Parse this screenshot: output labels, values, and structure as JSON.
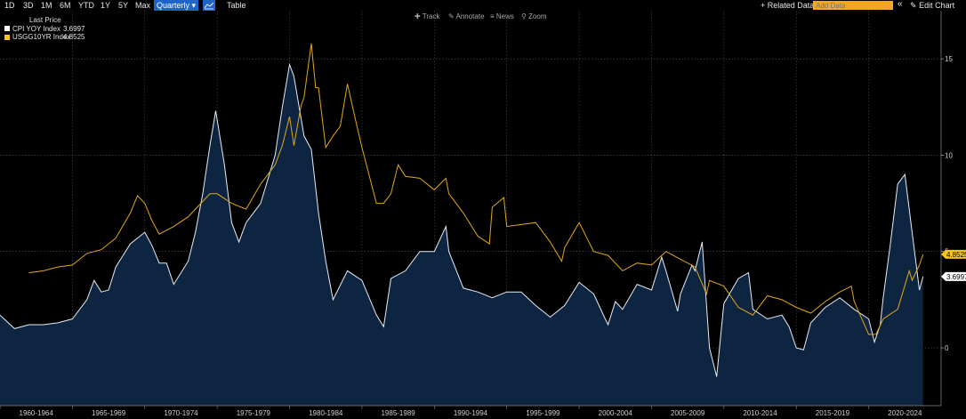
{
  "toolbar": {
    "periods": [
      "1D",
      "3D",
      "1M",
      "6M",
      "YTD",
      "1Y",
      "5Y",
      "Max"
    ],
    "frequency": "Quarterly ▾",
    "view_icon": "line-chart-icon",
    "table_label": "Table",
    "track_label": "Track",
    "annotate_label": "Annotate",
    "news_label": "News",
    "zoom_label": "Zoom",
    "related_data_label": "+ Related Data",
    "add_data_placeholder": "Add Data",
    "collapse_icon": "double-chevron-left-icon",
    "edit_chart_label": "Edit Chart"
  },
  "legend": {
    "title": "Last Price",
    "items": [
      {
        "name": "CPI YOY Index",
        "value": "3.6997",
        "color": "#ffffff"
      },
      {
        "name": "USGG10YR Index",
        "value": "4.8525",
        "color": "#f5c518"
      }
    ]
  },
  "colors": {
    "cpi_line": "#e8ecf4",
    "cpi_fill": "#0e2542",
    "ust_line": "#e1a817",
    "label_ust_bg": "#f5c518",
    "label_cpi_bg": "#ffffff"
  },
  "chart_data": {
    "type": "area",
    "x_range": [
      1960,
      2025
    ],
    "ylim": [
      -3,
      17.5
    ],
    "y_ticks": [
      0,
      5,
      10,
      15
    ],
    "grid": true,
    "x_tick_labels": [
      "1960-1964",
      "1965-1969",
      "1970-1974",
      "1975-1979",
      "1980-1984",
      "1985-1989",
      "1990-1994",
      "1995-1999",
      "2000-2004",
      "2005-2009",
      "2010-2014",
      "2015-2019",
      "2020-2024"
    ],
    "series": [
      {
        "name": "CPI YOY Index",
        "last_value": 3.6997,
        "x": [
          1960.0,
          1961.0,
          1962.0,
          1963.0,
          1964.0,
          1965.0,
          1966.0,
          1966.5,
          1967.0,
          1967.5,
          1968.0,
          1969.0,
          1970.0,
          1970.5,
          1971.0,
          1971.5,
          1972.0,
          1973.0,
          1973.5,
          1974.0,
          1974.5,
          1974.9,
          1975.5,
          1976.0,
          1976.5,
          1977.0,
          1978.0,
          1979.0,
          1979.5,
          1980.0,
          1980.3,
          1981.0,
          1981.5,
          1982.0,
          1982.5,
          1983.0,
          1984.0,
          1985.0,
          1986.0,
          1986.5,
          1987.0,
          1988.0,
          1989.0,
          1990.0,
          1990.8,
          1991.0,
          1992.0,
          1993.0,
          1994.0,
          1995.0,
          1996.0,
          1997.0,
          1998.0,
          1999.0,
          2000.0,
          2001.0,
          2001.8,
          2002.0,
          2002.5,
          2003.0,
          2004.0,
          2005.0,
          2005.7,
          2006.0,
          2006.8,
          2007.0,
          2007.8,
          2008.0,
          2008.5,
          2009.0,
          2009.5,
          2010.0,
          2011.0,
          2011.7,
          2012.0,
          2013.0,
          2014.0,
          2014.5,
          2015.0,
          2015.5,
          2016.0,
          2017.0,
          2018.0,
          2019.0,
          2020.0,
          2020.4,
          2020.8,
          2021.0,
          2021.5,
          2022.0,
          2022.5,
          2023.0,
          2023.5,
          2023.75
        ],
        "y": [
          1.7,
          1.0,
          1.2,
          1.2,
          1.3,
          1.5,
          2.5,
          3.5,
          2.9,
          3.0,
          4.2,
          5.4,
          6.0,
          5.3,
          4.4,
          4.4,
          3.3,
          4.5,
          6.0,
          8.0,
          10.5,
          12.3,
          9.5,
          6.5,
          5.5,
          6.5,
          7.5,
          10.0,
          12.5,
          14.7,
          14.1,
          11.0,
          10.3,
          7.0,
          4.5,
          2.5,
          4.0,
          3.5,
          1.7,
          1.1,
          3.6,
          4.0,
          5.0,
          5.0,
          6.3,
          5.0,
          3.1,
          2.9,
          2.6,
          2.9,
          2.9,
          2.2,
          1.6,
          2.2,
          3.4,
          2.8,
          1.5,
          1.2,
          2.4,
          2.0,
          3.3,
          3.0,
          4.7,
          4.0,
          1.9,
          2.8,
          4.3,
          4.0,
          5.5,
          0.0,
          -1.5,
          2.3,
          3.6,
          3.9,
          2.0,
          1.5,
          1.7,
          1.1,
          0.0,
          -0.1,
          1.3,
          2.1,
          2.6,
          2.0,
          1.5,
          0.3,
          1.2,
          2.6,
          5.4,
          8.5,
          9.0,
          6.0,
          3.0,
          3.6997
        ]
      },
      {
        "name": "USGG10YR Index",
        "last_value": 4.8525,
        "x": [
          1962.0,
          1963.0,
          1964.0,
          1965.0,
          1966.0,
          1967.0,
          1968.0,
          1969.0,
          1969.5,
          1970.0,
          1970.5,
          1971.0,
          1972.0,
          1973.0,
          1974.0,
          1974.5,
          1975.0,
          1976.0,
          1977.0,
          1978.0,
          1979.0,
          1979.5,
          1980.0,
          1980.3,
          1980.8,
          1981.0,
          1981.5,
          1981.8,
          1982.0,
          1982.5,
          1983.0,
          1983.5,
          1984.0,
          1984.5,
          1985.0,
          1986.0,
          1986.5,
          1987.0,
          1987.5,
          1988.0,
          1989.0,
          1990.0,
          1990.8,
          1991.0,
          1992.0,
          1993.0,
          1993.8,
          1994.0,
          1994.8,
          1995.0,
          1996.0,
          1997.0,
          1998.0,
          1998.8,
          1999.0,
          2000.0,
          2001.0,
          2002.0,
          2003.0,
          2004.0,
          2005.0,
          2006.0,
          2007.0,
          2008.0,
          2008.8,
          2009.0,
          2010.0,
          2011.0,
          2012.0,
          2013.0,
          2014.0,
          2015.0,
          2016.0,
          2017.0,
          2018.0,
          2018.8,
          2019.0,
          2020.0,
          2020.5,
          2021.0,
          2022.0,
          2022.8,
          2023.0,
          2023.5,
          2023.75
        ],
        "y": [
          3.9,
          4.0,
          4.2,
          4.3,
          4.9,
          5.1,
          5.7,
          7.0,
          7.9,
          7.5,
          6.6,
          5.9,
          6.3,
          6.8,
          7.6,
          8.0,
          8.0,
          7.5,
          7.2,
          8.5,
          9.5,
          10.5,
          12.0,
          10.5,
          12.6,
          13.0,
          15.8,
          13.5,
          13.5,
          10.4,
          11.0,
          11.5,
          13.7,
          12.0,
          10.4,
          7.5,
          7.5,
          8.0,
          9.5,
          8.9,
          8.8,
          8.2,
          8.8,
          8.0,
          7.0,
          5.8,
          5.4,
          7.3,
          7.8,
          6.3,
          6.4,
          6.5,
          5.5,
          4.5,
          5.2,
          6.5,
          5.0,
          4.8,
          4.0,
          4.4,
          4.3,
          5.0,
          4.6,
          4.2,
          2.8,
          3.5,
          3.2,
          2.1,
          1.7,
          2.7,
          2.5,
          2.1,
          1.8,
          2.4,
          2.9,
          3.2,
          2.4,
          0.7,
          0.7,
          1.5,
          2.0,
          4.0,
          3.5,
          4.3,
          4.8525
        ]
      }
    ]
  }
}
